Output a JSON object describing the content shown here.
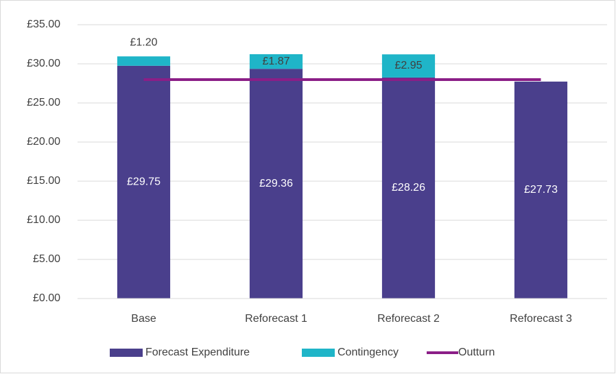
{
  "chart_data": {
    "type": "bar",
    "stacked": true,
    "categories": [
      "Base",
      "Reforecast 1",
      "Reforecast 2",
      "Reforecast 3"
    ],
    "series": [
      {
        "name": "Forecast Expenditure",
        "color": "#4a3f8c",
        "values": [
          29.75,
          29.36,
          28.26,
          27.73
        ],
        "value_labels": [
          "£29.75",
          "£29.36",
          "£28.26",
          "£27.73"
        ]
      },
      {
        "name": "Contingency",
        "color": "#1fb5c8",
        "values": [
          1.2,
          1.87,
          2.95,
          null
        ],
        "value_labels": [
          "£1.20",
          "£1.87",
          "£2.95",
          null
        ]
      },
      {
        "name": "Outturn",
        "type": "line",
        "color": "#8b1e87",
        "values": [
          27.98,
          27.98,
          27.98,
          27.98
        ]
      }
    ],
    "ylim": [
      0,
      35
    ],
    "yticks": [
      {
        "value": 0,
        "label": "£0.00"
      },
      {
        "value": 5,
        "label": "£5.00"
      },
      {
        "value": 10,
        "label": "£10.00"
      },
      {
        "value": 15,
        "label": "£15.00"
      },
      {
        "value": 20,
        "label": "£20.00"
      },
      {
        "value": 25,
        "label": "£25.00"
      },
      {
        "value": 30,
        "label": "£30.00"
      },
      {
        "value": 35,
        "label": "£35.00"
      }
    ],
    "grid": true,
    "legend": "bottom"
  }
}
